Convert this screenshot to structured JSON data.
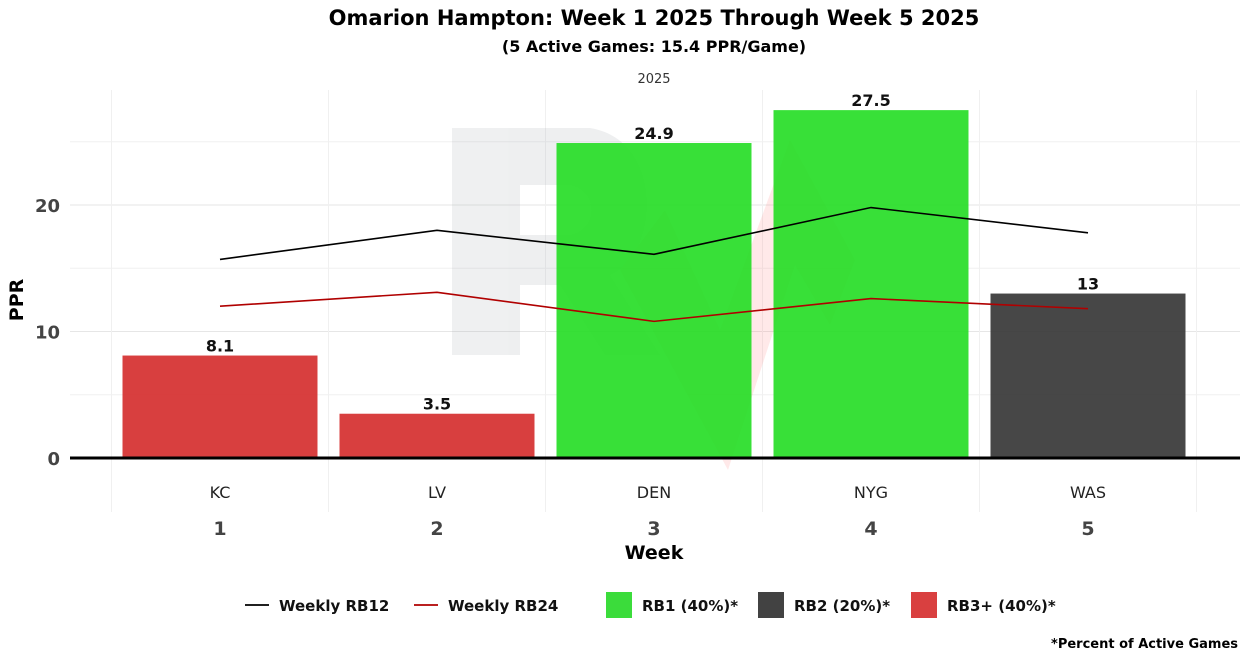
{
  "chart_data": {
    "type": "bar",
    "title": "Omarion Hampton: Week 1 2025 Through Week 5 2025",
    "subtitle": "(5 Active Games: 15.4 PPR/Game)",
    "facet_label": "2025",
    "xlabel": "Week",
    "ylabel": "PPR",
    "ylim": [
      0,
      28
    ],
    "yticks": [
      0,
      10,
      20
    ],
    "grid": true,
    "categories": [
      "1",
      "2",
      "3",
      "4",
      "5"
    ],
    "teams": [
      "KC",
      "LV",
      "DEN",
      "NYG",
      "WAS"
    ],
    "values": [
      8.1,
      3.5,
      24.9,
      27.5,
      13
    ],
    "value_labels": [
      "8.1",
      "3.5",
      "24.9",
      "27.5",
      "13"
    ],
    "tiers": [
      "RB3+",
      "RB3+",
      "RB1",
      "RB1",
      "RB2"
    ],
    "series": [
      {
        "name": "Weekly RB12",
        "type": "line",
        "color": "#000000",
        "values": [
          15.7,
          18.0,
          16.1,
          19.8,
          17.8
        ]
      },
      {
        "name": "Weekly RB24",
        "type": "line",
        "color": "#b00000",
        "values": [
          12.0,
          13.1,
          10.8,
          12.6,
          11.8
        ]
      }
    ],
    "tier_colors": {
      "RB1": "#22dd22",
      "RB2": "#333333",
      "RB3+": "#d42a2a"
    },
    "legend": {
      "position": "bottom",
      "items": [
        {
          "label": "Weekly RB12",
          "kind": "line",
          "color": "#000000"
        },
        {
          "label": "Weekly RB24",
          "kind": "line",
          "color": "#b00000"
        },
        {
          "label": "RB1 (40%)*",
          "kind": "box",
          "color": "#3bdc3b"
        },
        {
          "label": "RB2 (20%)*",
          "kind": "box",
          "color": "#424242"
        },
        {
          "label": "RB3+ (40%)*",
          "kind": "box",
          "color": "#d94040"
        }
      ]
    },
    "footnote": "*Percent of Active Games"
  }
}
